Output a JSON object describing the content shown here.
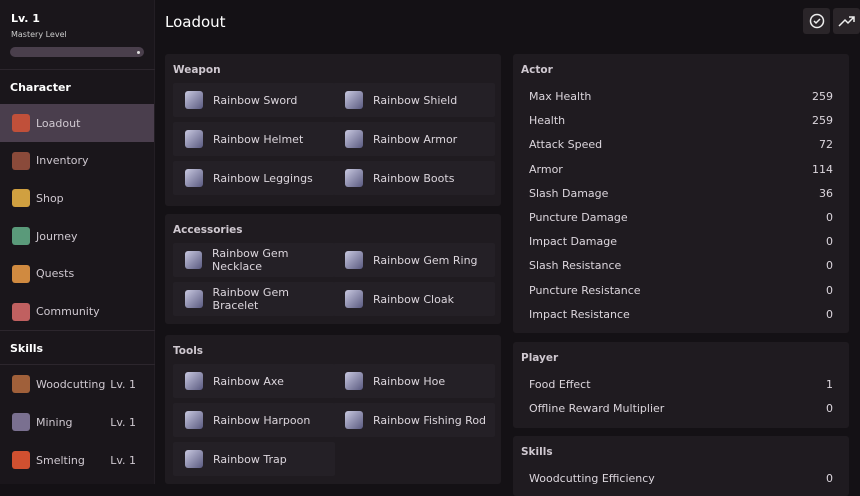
{
  "sidebar": {
    "level": "Lv. 1",
    "mastery_label": "Mastery Level",
    "mastery_progress": 0.97,
    "character_header": "Character",
    "character_items": [
      {
        "label": "Loadout",
        "icon": "sword-icon",
        "color": "#c0503a"
      },
      {
        "label": "Inventory",
        "icon": "bag-icon",
        "color": "#8a4a3a"
      },
      {
        "label": "Shop",
        "icon": "coins-icon",
        "color": "#d0a040"
      },
      {
        "label": "Journey",
        "icon": "map-icon",
        "color": "#5a9a7a"
      },
      {
        "label": "Quests",
        "icon": "scroll-icon",
        "color": "#d08a40"
      },
      {
        "label": "Community",
        "icon": "people-icon",
        "color": "#c06060"
      }
    ],
    "skills_header": "Skills",
    "skills": [
      {
        "label": "Woodcutting",
        "level": "Lv. 1",
        "icon": "log-icon",
        "color": "#a0603a"
      },
      {
        "label": "Mining",
        "level": "Lv. 1",
        "icon": "pickaxe-icon",
        "color": "#7a7090"
      },
      {
        "label": "Smelting",
        "level": "Lv. 1",
        "icon": "ingot-icon",
        "color": "#d05030"
      }
    ]
  },
  "header": {
    "title": "Loadout"
  },
  "weapon": {
    "title": "Weapon",
    "items": [
      "Rainbow Sword",
      "Rainbow Shield",
      "Rainbow Helmet",
      "Rainbow Armor",
      "Rainbow Leggings",
      "Rainbow Boots"
    ]
  },
  "accessories": {
    "title": "Accessories",
    "items": [
      "Rainbow Gem Necklace",
      "Rainbow Gem Ring",
      "Rainbow Gem Bracelet",
      "Rainbow Cloak"
    ]
  },
  "tools": {
    "title": "Tools",
    "items": [
      "Rainbow Axe",
      "Rainbow Hoe",
      "Rainbow Harpoon",
      "Rainbow Fishing Rod",
      "Rainbow Trap"
    ]
  },
  "actor": {
    "title": "Actor",
    "stats": [
      [
        "Max Health",
        "259"
      ],
      [
        "Health",
        "259"
      ],
      [
        "Attack Speed",
        "72"
      ],
      [
        "Armor",
        "114"
      ],
      [
        "Slash Damage",
        "36"
      ],
      [
        "Puncture Damage",
        "0"
      ],
      [
        "Impact Damage",
        "0"
      ],
      [
        "Slash Resistance",
        "0"
      ],
      [
        "Puncture Resistance",
        "0"
      ],
      [
        "Impact Resistance",
        "0"
      ]
    ]
  },
  "player": {
    "title": "Player",
    "stats": [
      [
        "Food Effect",
        "1"
      ],
      [
        "Offline Reward Multiplier",
        "0"
      ]
    ]
  },
  "skills_panel": {
    "title": "Skills",
    "stats": [
      [
        "Woodcutting Efficiency",
        "0"
      ]
    ]
  }
}
